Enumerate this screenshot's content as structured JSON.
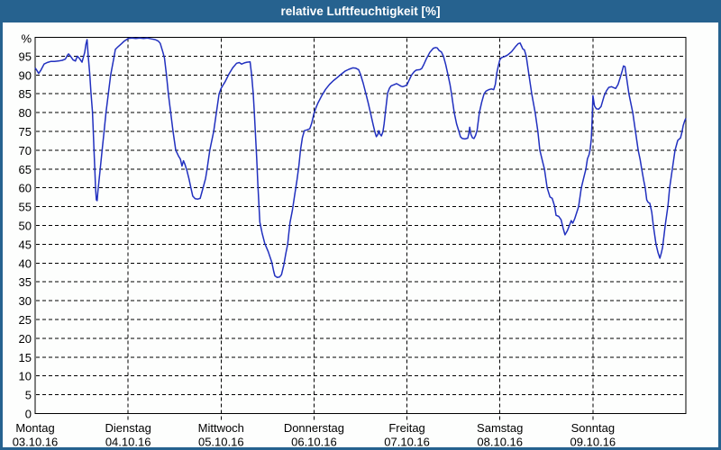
{
  "window": {
    "title": "relative Luftfeuchtigkeit [%]"
  },
  "colors": {
    "titlebar_bg": "#26628f",
    "frame": "#26628f",
    "plot_background": "#fdfefd",
    "grid": "#000000",
    "line": "#2130bf"
  },
  "chart_data": {
    "type": "line",
    "title": "relative Luftfeuchtigkeit [%]",
    "ylabel": "",
    "xlabel": "",
    "y_unit_label": "%",
    "ylim": [
      0,
      100
    ],
    "ytick_step": 5,
    "ytick_values": [
      0,
      5,
      10,
      15,
      20,
      25,
      30,
      35,
      40,
      45,
      50,
      55,
      60,
      65,
      70,
      75,
      80,
      85,
      90,
      95
    ],
    "grid": "dashed",
    "legend": "none",
    "days": [
      {
        "weekday": "Montag",
        "date": "03.10.16"
      },
      {
        "weekday": "Dienstag",
        "date": "04.10.16"
      },
      {
        "weekday": "Mittwoch",
        "date": "05.10.16"
      },
      {
        "weekday": "Donnerstag",
        "date": "06.10.16"
      },
      {
        "weekday": "Freitag",
        "date": "07.10.16"
      },
      {
        "weekday": "Samstag",
        "date": "08.10.16"
      },
      {
        "weekday": "Sonntag",
        "date": "09.10.16"
      }
    ],
    "x_unit": "hours_since_monday_00",
    "xlim": [
      0,
      168
    ],
    "series": [
      {
        "name": "relative Luftfeuchtigkeit",
        "points": [
          [
            0,
            91.9
          ],
          [
            0.4,
            91.3
          ],
          [
            0.9,
            90.4
          ],
          [
            1.5,
            91.3
          ],
          [
            2.3,
            92.9
          ],
          [
            3.1,
            93.3
          ],
          [
            4,
            93.6
          ],
          [
            5,
            93.6
          ],
          [
            6,
            93.7
          ],
          [
            7,
            93.9
          ],
          [
            7.8,
            94.2
          ],
          [
            8.3,
            95.2
          ],
          [
            8.6,
            95.6
          ],
          [
            9.2,
            94.9
          ],
          [
            9.8,
            94
          ],
          [
            10.4,
            93.7
          ],
          [
            10.9,
            95
          ],
          [
            11.5,
            94.3
          ],
          [
            12.1,
            93.4
          ],
          [
            12.8,
            96
          ],
          [
            13.1,
            98.1
          ],
          [
            13.4,
            99.4
          ],
          [
            13.7,
            95
          ],
          [
            14.1,
            90.2
          ],
          [
            14.4,
            85.4
          ],
          [
            14.8,
            80.2
          ],
          [
            15,
            75
          ],
          [
            15.2,
            70
          ],
          [
            15.4,
            65
          ],
          [
            15.6,
            60
          ],
          [
            15.8,
            56.8
          ],
          [
            16,
            56.6
          ],
          [
            16.2,
            59
          ],
          [
            16.8,
            65
          ],
          [
            17.3,
            70
          ],
          [
            17.8,
            75
          ],
          [
            18.3,
            80
          ],
          [
            18.9,
            85
          ],
          [
            19.5,
            90
          ],
          [
            20.4,
            95
          ],
          [
            20.7,
            96.8
          ],
          [
            21.4,
            97.5
          ],
          [
            22.3,
            98.3
          ],
          [
            23,
            99
          ],
          [
            23.7,
            99.5
          ],
          [
            24,
            99.7
          ],
          [
            25,
            99.8
          ],
          [
            26,
            99.7
          ],
          [
            27,
            99.8
          ],
          [
            28,
            99.7
          ],
          [
            29,
            99.8
          ],
          [
            30,
            99.6
          ],
          [
            31,
            99.4
          ],
          [
            31.8,
            99
          ],
          [
            32.3,
            98.4
          ],
          [
            33,
            96
          ],
          [
            33.4,
            94.5
          ],
          [
            33.9,
            90
          ],
          [
            34.4,
            85
          ],
          [
            35,
            80
          ],
          [
            35.6,
            75
          ],
          [
            36.3,
            70
          ],
          [
            37,
            68.5
          ],
          [
            37.5,
            67.6
          ],
          [
            37.9,
            65.8
          ],
          [
            38.3,
            67.2
          ],
          [
            38.7,
            66.2
          ],
          [
            39.2,
            64.5
          ],
          [
            39.7,
            62.5
          ],
          [
            40.2,
            60
          ],
          [
            40.7,
            57.8
          ],
          [
            41.3,
            57.1
          ],
          [
            42,
            57
          ],
          [
            42.6,
            57.2
          ],
          [
            43.3,
            59.8
          ],
          [
            44,
            62.5
          ],
          [
            44.4,
            65
          ],
          [
            45.1,
            70
          ],
          [
            46.1,
            75
          ],
          [
            46.8,
            80
          ],
          [
            47.5,
            85
          ],
          [
            48,
            86.4
          ],
          [
            48.5,
            87.3
          ],
          [
            49,
            88.1
          ],
          [
            50,
            90.2
          ],
          [
            51,
            91.9
          ],
          [
            52,
            93.1
          ],
          [
            52.7,
            93.3
          ],
          [
            53.3,
            92.9
          ],
          [
            54,
            93.2
          ],
          [
            54.7,
            93.4
          ],
          [
            55.5,
            93.5
          ],
          [
            55.9,
            90
          ],
          [
            56.3,
            85
          ],
          [
            56.6,
            80
          ],
          [
            56.9,
            74
          ],
          [
            57.2,
            68
          ],
          [
            57.5,
            61
          ],
          [
            57.8,
            55
          ],
          [
            58,
            50.9
          ],
          [
            58.6,
            48
          ],
          [
            59.3,
            45.2
          ],
          [
            60.2,
            43
          ],
          [
            61.1,
            40.2
          ],
          [
            61.6,
            37.8
          ],
          [
            61.9,
            36.6
          ],
          [
            62.5,
            36.2
          ],
          [
            63.1,
            36.3
          ],
          [
            63.6,
            36.9
          ],
          [
            64.2,
            39.5
          ],
          [
            64.7,
            42.5
          ],
          [
            65.2,
            45
          ],
          [
            65.5,
            48
          ],
          [
            65.8,
            50.8
          ],
          [
            66.4,
            54
          ],
          [
            67,
            58
          ],
          [
            67.6,
            62
          ],
          [
            68.1,
            66
          ],
          [
            68.5,
            70
          ],
          [
            69,
            73.3
          ],
          [
            69.5,
            75.2
          ],
          [
            70.2,
            75.4
          ],
          [
            70.9,
            75.7
          ],
          [
            71.4,
            77.2
          ],
          [
            72,
            79.8
          ],
          [
            72.5,
            81.3
          ],
          [
            73,
            82.5
          ],
          [
            74,
            84.5
          ],
          [
            75,
            86.2
          ],
          [
            76,
            87.5
          ],
          [
            77,
            88.5
          ],
          [
            78,
            89.3
          ],
          [
            79,
            90.2
          ],
          [
            80,
            91
          ],
          [
            81,
            91.5
          ],
          [
            82,
            91.9
          ],
          [
            82.8,
            91.8
          ],
          [
            83.5,
            91.4
          ],
          [
            84,
            90.2
          ],
          [
            84.7,
            87.8
          ],
          [
            85.4,
            85
          ],
          [
            86,
            82.5
          ],
          [
            86.6,
            79.8
          ],
          [
            87.2,
            77
          ],
          [
            87.7,
            74.9
          ],
          [
            88.1,
            73.6
          ],
          [
            88.5,
            74.2
          ],
          [
            88.7,
            75.2
          ],
          [
            89,
            74.3
          ],
          [
            89.4,
            73.8
          ],
          [
            89.8,
            74.9
          ],
          [
            90.1,
            77
          ],
          [
            90.4,
            79.8
          ],
          [
            90.7,
            82.5
          ],
          [
            91,
            85.2
          ],
          [
            91.5,
            86.5
          ],
          [
            91.9,
            87.1
          ],
          [
            92.6,
            87.4
          ],
          [
            93.3,
            87.7
          ],
          [
            94,
            87.3
          ],
          [
            94.5,
            87
          ],
          [
            94.9,
            86.9
          ],
          [
            95.5,
            87.1
          ],
          [
            96,
            87.4
          ],
          [
            96.5,
            88.5
          ],
          [
            97.2,
            90
          ],
          [
            97.9,
            90.9
          ],
          [
            98.4,
            91.3
          ],
          [
            99.3,
            91.4
          ],
          [
            99.8,
            91.7
          ],
          [
            100.3,
            92.7
          ],
          [
            101,
            94.3
          ],
          [
            101.9,
            96
          ],
          [
            102.8,
            97.1
          ],
          [
            103.4,
            97.3
          ],
          [
            103.8,
            97.2
          ],
          [
            104.3,
            96.5
          ],
          [
            104.9,
            96.1
          ],
          [
            105.4,
            95
          ],
          [
            106,
            92.8
          ],
          [
            106.6,
            90
          ],
          [
            107.1,
            87.5
          ],
          [
            107.5,
            85
          ],
          [
            108.2,
            80
          ],
          [
            108.8,
            77
          ],
          [
            109.4,
            75
          ],
          [
            109.8,
            73.6
          ],
          [
            110.3,
            73.1
          ],
          [
            111,
            73
          ],
          [
            111.7,
            73.2
          ],
          [
            112,
            74.5
          ],
          [
            112.2,
            76.1
          ],
          [
            112.5,
            74.2
          ],
          [
            112.9,
            73.3
          ],
          [
            113.3,
            73.1
          ],
          [
            113.7,
            73.9
          ],
          [
            114.1,
            75.3
          ],
          [
            114.7,
            80
          ],
          [
            115.3,
            82.8
          ],
          [
            115.9,
            85
          ],
          [
            116.4,
            85.7
          ],
          [
            117.1,
            86.1
          ],
          [
            117.8,
            86.3
          ],
          [
            118.4,
            86.1
          ],
          [
            118.8,
            87.5
          ],
          [
            119.2,
            90.6
          ],
          [
            119.6,
            92.5
          ],
          [
            120,
            94.1
          ],
          [
            120.4,
            94.6
          ],
          [
            121.2,
            94.9
          ],
          [
            122,
            95.3
          ],
          [
            123,
            96.2
          ],
          [
            124,
            97.5
          ],
          [
            124.7,
            98.3
          ],
          [
            125.2,
            98.5
          ],
          [
            125.6,
            97.6
          ],
          [
            125.9,
            96.9
          ],
          [
            126.3,
            96.7
          ],
          [
            126.8,
            95
          ],
          [
            127.5,
            90
          ],
          [
            128.2,
            85
          ],
          [
            129.1,
            80
          ],
          [
            129.8,
            75
          ],
          [
            130.3,
            70
          ],
          [
            131,
            67
          ],
          [
            131.5,
            65
          ],
          [
            132.2,
            60
          ],
          [
            132.9,
            57.6
          ],
          [
            133.5,
            57.2
          ],
          [
            134.1,
            55.2
          ],
          [
            134.5,
            52.7
          ],
          [
            135.2,
            52.4
          ],
          [
            135.8,
            51.5
          ],
          [
            136.3,
            49.3
          ],
          [
            136.8,
            47.5
          ],
          [
            137.4,
            48.6
          ],
          [
            138,
            50.2
          ],
          [
            138.4,
            51.3
          ],
          [
            138.8,
            50.6
          ],
          [
            139.3,
            51.8
          ],
          [
            140.3,
            55
          ],
          [
            141,
            60
          ],
          [
            141.6,
            62.5
          ],
          [
            142.2,
            65
          ],
          [
            142.6,
            67.7
          ],
          [
            143,
            68.8
          ],
          [
            143.3,
            70.2
          ],
          [
            143.6,
            73
          ],
          [
            143.8,
            78
          ],
          [
            144,
            84.5
          ],
          [
            144.4,
            81.8
          ],
          [
            144.9,
            81
          ],
          [
            145.5,
            80.9
          ],
          [
            146.1,
            81.6
          ],
          [
            146.9,
            84.4
          ],
          [
            147.5,
            85.8
          ],
          [
            148.1,
            86.7
          ],
          [
            148.8,
            86.9
          ],
          [
            149.4,
            86.6
          ],
          [
            149.9,
            86.4
          ],
          [
            150.5,
            87.5
          ],
          [
            151.1,
            89.5
          ],
          [
            151.6,
            91.2
          ],
          [
            151.9,
            92.4
          ],
          [
            152.3,
            92.2
          ],
          [
            152.6,
            90
          ],
          [
            153.3,
            85
          ],
          [
            154,
            81.5
          ],
          [
            154.3,
            80
          ],
          [
            155,
            75
          ],
          [
            155.7,
            70
          ],
          [
            156.2,
            67.5
          ],
          [
            156.6,
            65
          ],
          [
            157.1,
            62
          ],
          [
            157.5,
            60
          ],
          [
            157.9,
            56.8
          ],
          [
            158.3,
            56.1
          ],
          [
            158.7,
            55.9
          ],
          [
            159.2,
            53.5
          ],
          [
            159.6,
            50
          ],
          [
            160.3,
            45
          ],
          [
            160.8,
            42.8
          ],
          [
            161.3,
            41.3
          ],
          [
            161.7,
            42.8
          ],
          [
            162,
            44.2
          ],
          [
            162.7,
            50.2
          ],
          [
            163.4,
            55.3
          ],
          [
            163.8,
            60
          ],
          [
            164.5,
            65
          ],
          [
            165.2,
            70
          ],
          [
            165.9,
            72.6
          ],
          [
            166.3,
            73
          ],
          [
            166.6,
            73.2
          ],
          [
            167,
            74.8
          ],
          [
            167.3,
            76.5
          ],
          [
            167.7,
            77.8
          ],
          [
            168,
            78.5
          ]
        ]
      }
    ]
  }
}
